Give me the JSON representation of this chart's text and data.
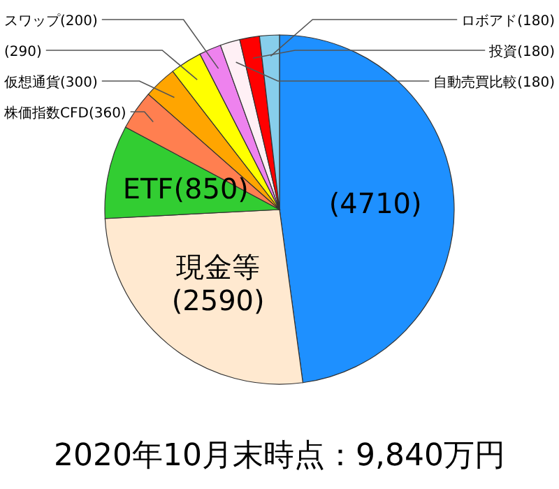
{
  "chart_data": {
    "type": "pie",
    "title": "2020年10月末時点：9,840万円",
    "categories": [
      null,
      "現金等",
      "ETF",
      "株価指数CFD",
      "仮想通貨",
      null,
      "スワップ",
      "自動売買比較",
      "投資",
      "ロボアド"
    ],
    "values": [
      4710,
      2590,
      850,
      360,
      300,
      290,
      200,
      180,
      180,
      180
    ],
    "value_labels": [
      "(4710)",
      "(2590)",
      "(850)",
      "(360)",
      "(300)",
      "(290)",
      "(200)",
      "(180)",
      "(180)",
      "(180)"
    ],
    "colors": [
      "#1e90ff",
      "#ffe9d0",
      "#32cd32",
      "#ff7f50",
      "#ffa500",
      "#ffff00",
      "#ee82ee",
      "#fff0f5",
      "#ff0000",
      "#87ceeb"
    ]
  }
}
